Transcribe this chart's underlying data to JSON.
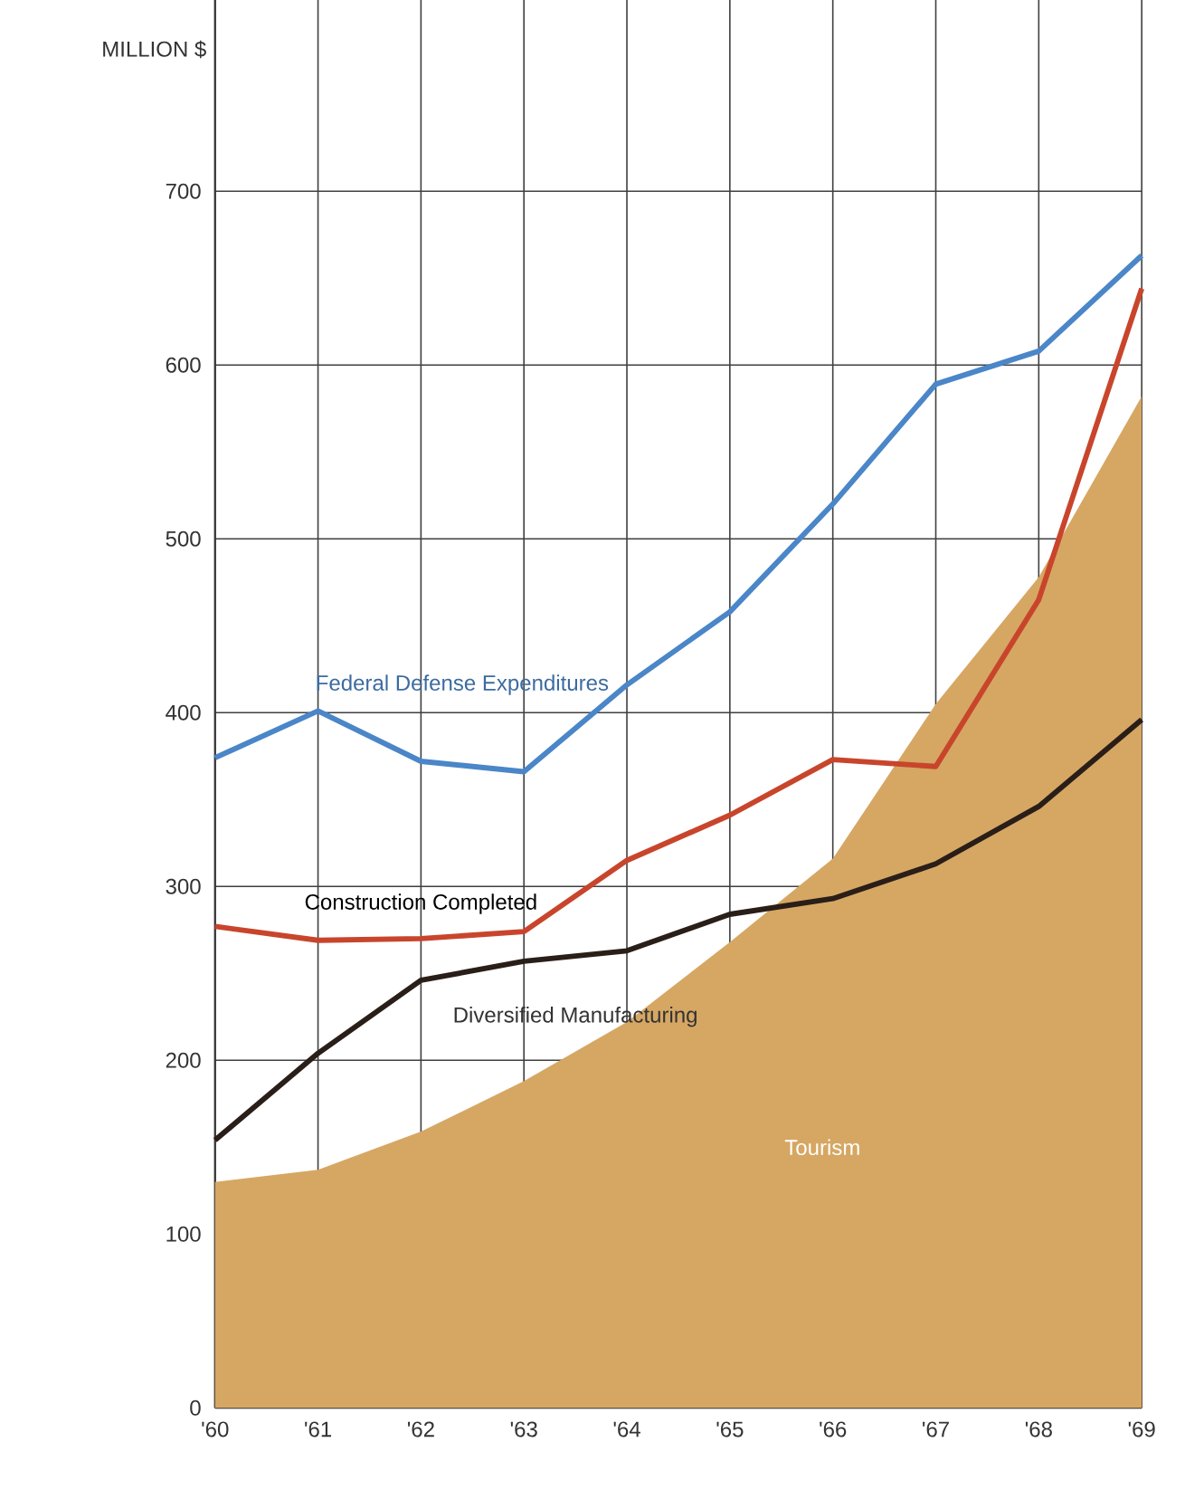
{
  "chart_data": {
    "type": "line",
    "ylabel": "MILLION $",
    "x": [
      1960,
      1961,
      1962,
      1963,
      1964,
      1965,
      1966,
      1967,
      1968,
      1969
    ],
    "xlim": [
      1960,
      1969
    ],
    "ylim": [
      0,
      810
    ],
    "xticks": [
      {
        "value": 1960,
        "label": "'60"
      },
      {
        "value": 1961,
        "label": "'61"
      },
      {
        "value": 1962,
        "label": "'62"
      },
      {
        "value": 1963,
        "label": "'63"
      },
      {
        "value": 1964,
        "label": "'64"
      },
      {
        "value": 1965,
        "label": "'65"
      },
      {
        "value": 1966,
        "label": "'66"
      },
      {
        "value": 1967,
        "label": "'67"
      },
      {
        "value": 1968,
        "label": "'68"
      },
      {
        "value": 1969,
        "label": "'69"
      }
    ],
    "yticks": [
      0,
      100,
      200,
      300,
      400,
      500,
      600,
      700
    ],
    "grid": true,
    "series": [
      {
        "name": "Tourism",
        "type": "area",
        "color": "#d6a763",
        "values": [
          130,
          137,
          159,
          188,
          222,
          268,
          316,
          405,
          478,
          582
        ]
      },
      {
        "name": "Federal Defense Expenditures",
        "color": "#4a86c8",
        "values": [
          374,
          401,
          372,
          366,
          416,
          458,
          520,
          589,
          608,
          663
        ]
      },
      {
        "name": "Construction Completed",
        "color": "#c8452c",
        "values": [
          277,
          269,
          270,
          274,
          315,
          341,
          373,
          369,
          465,
          644
        ]
      },
      {
        "name": "Diversified Manufacturing",
        "color": "#2a1e18",
        "values": [
          154,
          204,
          246,
          257,
          263,
          284,
          293,
          313,
          346,
          396
        ]
      }
    ]
  }
}
